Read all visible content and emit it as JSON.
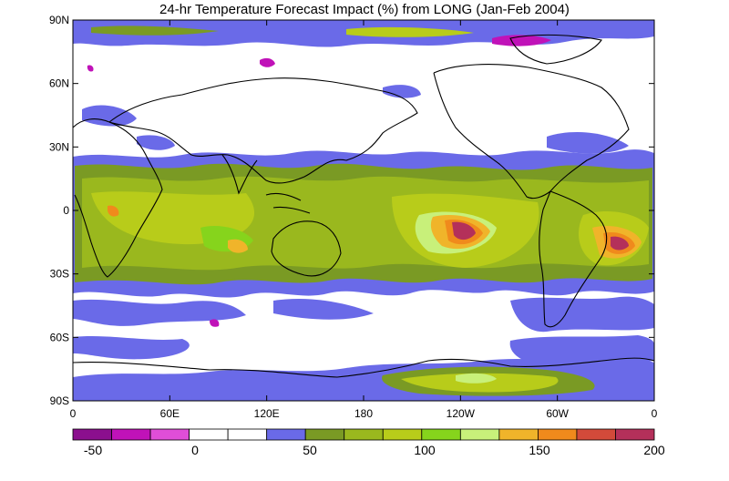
{
  "title": "24-hr Temperature Forecast Impact (%) from LONG (Jan-Feb 2004)",
  "map": {
    "lat_ticks": [
      "90N",
      "60N",
      "30N",
      "0",
      "30S",
      "60S",
      "90S"
    ],
    "lon_ticks": [
      "0",
      "60E",
      "120E",
      "180",
      "120W",
      "60W",
      "0"
    ]
  },
  "colorbar": {
    "colors": [
      "#8b0f8e",
      "#c012b8",
      "#e04ed8",
      "#ffffff",
      "#ffffff",
      "#6a6ae8",
      "#7a9a24",
      "#9ab81e",
      "#b8cc1a",
      "#86d41c",
      "#c8f07a",
      "#f0b42a",
      "#f08a1c",
      "#d24a3a",
      "#b4305a"
    ],
    "labels": [
      "-50",
      "0",
      "50",
      "100",
      "150",
      "200"
    ]
  }
}
